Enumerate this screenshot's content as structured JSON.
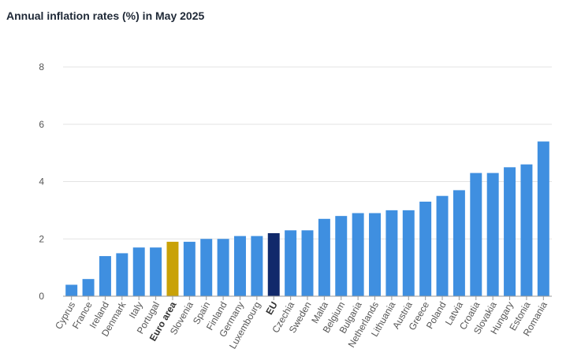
{
  "chart_data": {
    "type": "bar",
    "title": "Annual inflation rates (%) in May 2025",
    "xlabel": "",
    "ylabel": "",
    "ylim": [
      0,
      8
    ],
    "yticks": [
      0,
      2,
      4,
      6,
      8
    ],
    "grid": true,
    "categories": [
      "Cyprus",
      "France",
      "Ireland",
      "Denmark",
      "Italy",
      "Portugal",
      "Euro area",
      "Slovenia",
      "Spain",
      "Finland",
      "Germany",
      "Luxembourg",
      "EU",
      "Czechia",
      "Sweden",
      "Malta",
      "Belgium",
      "Bulgaria",
      "Netherlands",
      "Lithuania",
      "Austria",
      "Greece",
      "Poland",
      "Latvia",
      "Croatia",
      "Slovakia",
      "Hungary",
      "Estonia",
      "Romania"
    ],
    "values": [
      0.4,
      0.6,
      1.4,
      1.5,
      1.7,
      1.7,
      1.9,
      1.9,
      2.0,
      2.0,
      2.1,
      2.1,
      2.2,
      2.3,
      2.3,
      2.7,
      2.8,
      2.9,
      2.9,
      3.0,
      3.0,
      3.3,
      3.5,
      3.7,
      4.3,
      4.3,
      4.5,
      4.6,
      5.4
    ],
    "highlighted": [
      "Euro area",
      "EU"
    ],
    "colors": {
      "default": "#3f8fe0",
      "Euro area": "#c9a208",
      "EU": "#11296b",
      "grid": "#e3e3e3",
      "axis": "#999999"
    }
  }
}
